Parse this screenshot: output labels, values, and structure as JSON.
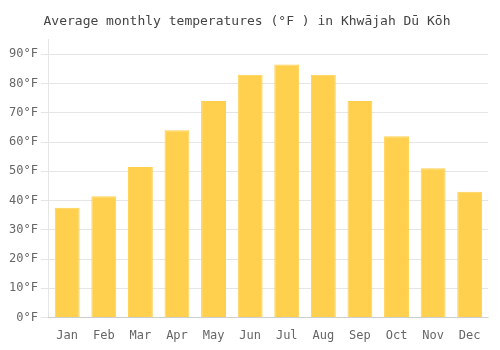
{
  "chart_data": {
    "type": "bar",
    "title": "Average monthly temperatures (°F ) in Khwājah Dū Kōh",
    "categories": [
      "Jan",
      "Feb",
      "Mar",
      "Apr",
      "May",
      "Jun",
      "Jul",
      "Aug",
      "Sep",
      "Oct",
      "Nov",
      "Dec"
    ],
    "values": [
      37.5,
      41.5,
      51.5,
      64,
      74,
      83,
      86.5,
      83,
      74,
      62,
      51,
      43
    ],
    "color": "#FFD04E",
    "ylim": [
      0,
      95
    ],
    "yticks": [
      {
        "value": 0,
        "label": "0°F"
      },
      {
        "value": 10,
        "label": "10°F"
      },
      {
        "value": 20,
        "label": "20°F"
      },
      {
        "value": 30,
        "label": "30°F"
      },
      {
        "value": 40,
        "label": "40°F"
      },
      {
        "value": 50,
        "label": "50°F"
      },
      {
        "value": 60,
        "label": "60°F"
      },
      {
        "value": 70,
        "label": "70°F"
      },
      {
        "value": 80,
        "label": "80°F"
      },
      {
        "value": 90,
        "label": "90°F"
      }
    ],
    "grid": true
  }
}
